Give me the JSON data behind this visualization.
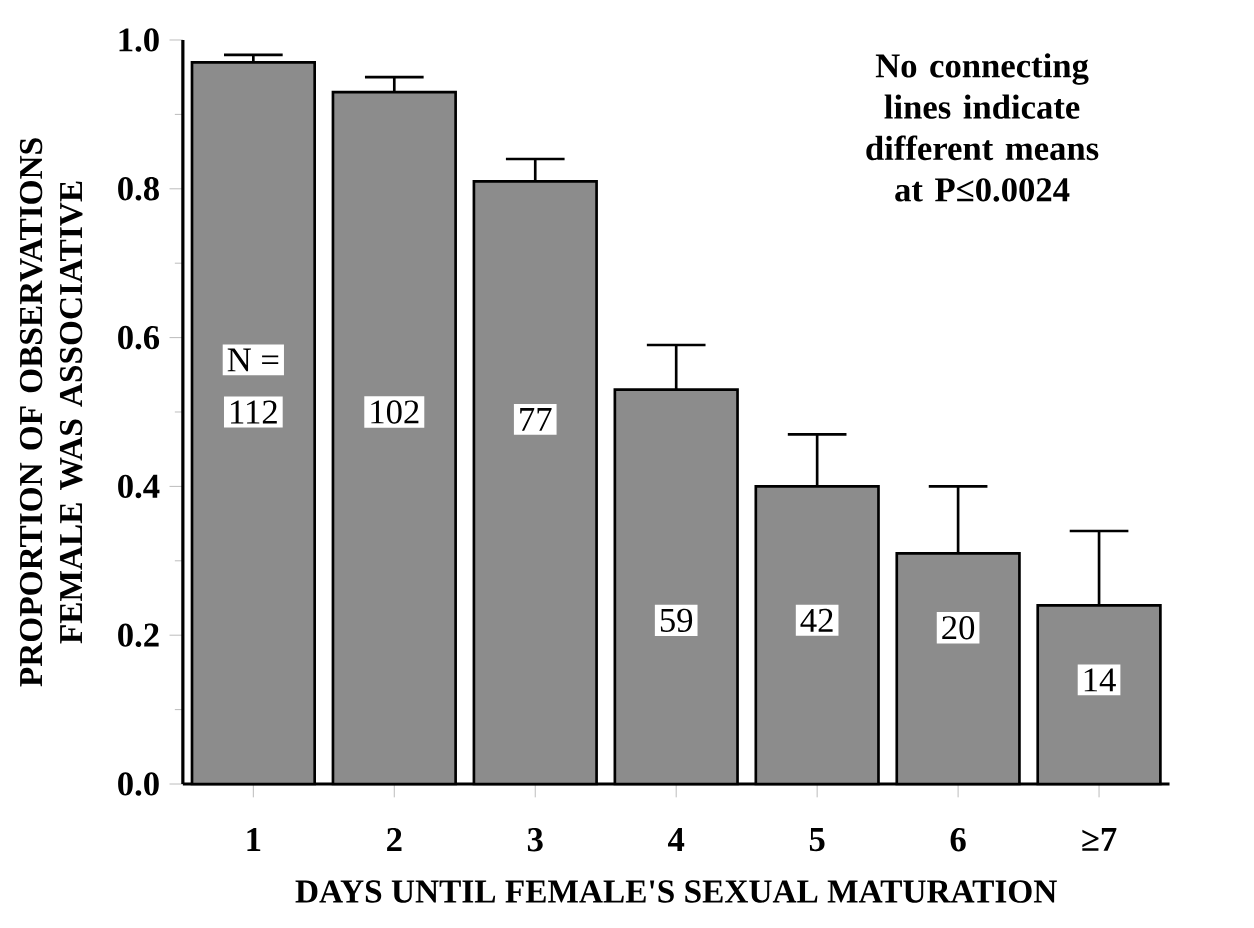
{
  "chart_data": {
    "type": "bar",
    "xlabel": "DAYS UNTIL FEMALE'S SEXUAL MATURATION",
    "ylabel": "PROPORTION OF OBSERVATIONS\nFEMALE WAS ASSOCIATIVE",
    "categories": [
      "1",
      "2",
      "3",
      "4",
      "5",
      "6",
      "≥7"
    ],
    "values": [
      0.97,
      0.93,
      0.81,
      0.53,
      0.4,
      0.31,
      0.24
    ],
    "errors": [
      [
        0.97,
        0.98
      ],
      [
        0.93,
        0.95
      ],
      [
        0.81,
        0.84
      ],
      [
        0.53,
        0.59
      ],
      [
        0.4,
        0.47
      ],
      [
        0.31,
        0.4
      ],
      [
        0.24,
        0.34
      ]
    ],
    "color": "#8c8c8c",
    "ylim": [
      0,
      1.0
    ],
    "yticks": [
      {
        "value": 0,
        "label": "0.0"
      },
      {
        "value": 0.2,
        "label": "0.2"
      },
      {
        "value": 0.4,
        "label": "0.4"
      },
      {
        "value": 0.6,
        "label": "0.6"
      },
      {
        "value": 0.8,
        "label": "0.8"
      },
      {
        "value": 1.0,
        "label": "1.0"
      }
    ],
    "grid": false,
    "annotations": [
      "No connecting lines indicate different means at P≤0.0024",
      {
        "text": "N =",
        "x": "1",
        "y": 0.57
      },
      {
        "text": "112",
        "x": "1",
        "y": 0.5
      },
      {
        "text": "102",
        "x": "2",
        "y": 0.5
      },
      {
        "text": "77",
        "x": "3",
        "y": 0.49
      },
      {
        "text": "59",
        "x": "4",
        "y": 0.22
      },
      {
        "text": "42",
        "x": "5",
        "y": 0.22
      },
      {
        "text": "20",
        "x": "6",
        "y": 0.21
      },
      {
        "text": "14",
        "x": "≥7",
        "y": 0.14
      }
    ]
  }
}
